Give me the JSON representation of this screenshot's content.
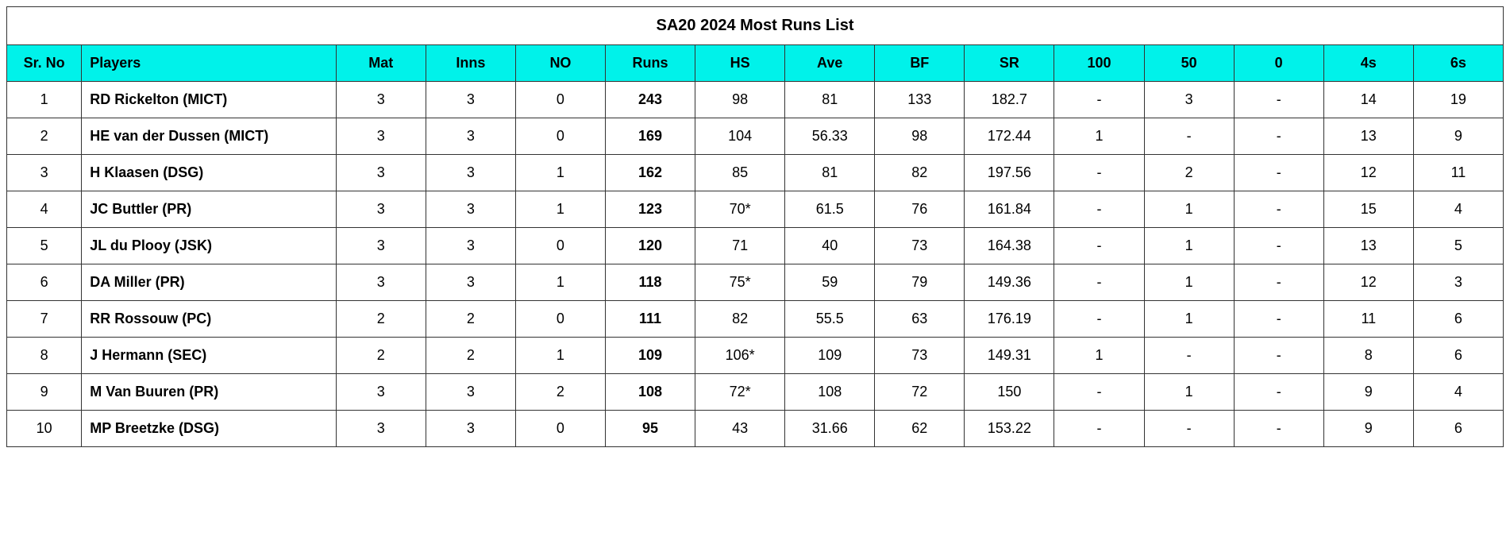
{
  "table": {
    "title": "SA20 2024 Most Runs List",
    "header_bg": "#00f2ea",
    "border_color": "#333333",
    "columns": [
      {
        "key": "sr",
        "label": "Sr. No",
        "class": "col-sr"
      },
      {
        "key": "player",
        "label": "Players",
        "class": "col-player"
      },
      {
        "key": "mat",
        "label": "Mat",
        "class": "col-stat"
      },
      {
        "key": "inns",
        "label": "Inns",
        "class": "col-stat"
      },
      {
        "key": "no",
        "label": "NO",
        "class": "col-stat"
      },
      {
        "key": "runs",
        "label": "Runs",
        "class": "col-stat"
      },
      {
        "key": "hs",
        "label": "HS",
        "class": "col-stat"
      },
      {
        "key": "ave",
        "label": "Ave",
        "class": "col-stat"
      },
      {
        "key": "bf",
        "label": "BF",
        "class": "col-stat"
      },
      {
        "key": "sr_rate",
        "label": "SR",
        "class": "col-stat"
      },
      {
        "key": "h100",
        "label": "100",
        "class": "col-stat"
      },
      {
        "key": "h50",
        "label": "50",
        "class": "col-stat"
      },
      {
        "key": "ducks",
        "label": "0",
        "class": "col-stat"
      },
      {
        "key": "fours",
        "label": "4s",
        "class": "col-stat"
      },
      {
        "key": "sixes",
        "label": "6s",
        "class": "col-stat"
      }
    ],
    "rows": [
      {
        "sr": "1",
        "player": "RD Rickelton (MICT)",
        "mat": "3",
        "inns": "3",
        "no": "0",
        "runs": "243",
        "hs": "98",
        "ave": "81",
        "bf": "133",
        "sr_rate": "182.7",
        "h100": "-",
        "h50": "3",
        "ducks": "-",
        "fours": "14",
        "sixes": "19"
      },
      {
        "sr": "2",
        "player": "HE van der Dussen (MICT)",
        "mat": "3",
        "inns": "3",
        "no": "0",
        "runs": "169",
        "hs": "104",
        "ave": "56.33",
        "bf": "98",
        "sr_rate": "172.44",
        "h100": "1",
        "h50": "-",
        "ducks": "-",
        "fours": "13",
        "sixes": "9"
      },
      {
        "sr": "3",
        "player": "H Klaasen (DSG)",
        "mat": "3",
        "inns": "3",
        "no": "1",
        "runs": "162",
        "hs": "85",
        "ave": "81",
        "bf": "82",
        "sr_rate": "197.56",
        "h100": "-",
        "h50": "2",
        "ducks": "-",
        "fours": "12",
        "sixes": "11"
      },
      {
        "sr": "4",
        "player": "JC Buttler (PR)",
        "mat": "3",
        "inns": "3",
        "no": "1",
        "runs": "123",
        "hs": "70*",
        "ave": "61.5",
        "bf": "76",
        "sr_rate": "161.84",
        "h100": "-",
        "h50": "1",
        "ducks": "-",
        "fours": "15",
        "sixes": "4"
      },
      {
        "sr": "5",
        "player": "JL du Plooy (JSK)",
        "mat": "3",
        "inns": "3",
        "no": "0",
        "runs": "120",
        "hs": "71",
        "ave": "40",
        "bf": "73",
        "sr_rate": "164.38",
        "h100": "-",
        "h50": "1",
        "ducks": "-",
        "fours": "13",
        "sixes": "5"
      },
      {
        "sr": "6",
        "player": "DA Miller (PR)",
        "mat": "3",
        "inns": "3",
        "no": "1",
        "runs": "118",
        "hs": "75*",
        "ave": "59",
        "bf": "79",
        "sr_rate": "149.36",
        "h100": "-",
        "h50": "1",
        "ducks": "-",
        "fours": "12",
        "sixes": "3"
      },
      {
        "sr": "7",
        "player": "RR Rossouw (PC)",
        "mat": "2",
        "inns": "2",
        "no": "0",
        "runs": "111",
        "hs": "82",
        "ave": "55.5",
        "bf": "63",
        "sr_rate": "176.19",
        "h100": "-",
        "h50": "1",
        "ducks": "-",
        "fours": "11",
        "sixes": "6"
      },
      {
        "sr": "8",
        "player": "J Hermann (SEC)",
        "mat": "2",
        "inns": "2",
        "no": "1",
        "runs": "109",
        "hs": "106*",
        "ave": "109",
        "bf": "73",
        "sr_rate": "149.31",
        "h100": "1",
        "h50": "-",
        "ducks": "-",
        "fours": "8",
        "sixes": "6"
      },
      {
        "sr": "9",
        "player": "M Van Buuren (PR)",
        "mat": "3",
        "inns": "3",
        "no": "2",
        "runs": "108",
        "hs": "72*",
        "ave": "108",
        "bf": "72",
        "sr_rate": "150",
        "h100": "-",
        "h50": "1",
        "ducks": "-",
        "fours": "9",
        "sixes": "4"
      },
      {
        "sr": "10",
        "player": "MP Breetzke (DSG)",
        "mat": "3",
        "inns": "3",
        "no": "0",
        "runs": "95",
        "hs": "43",
        "ave": "31.66",
        "bf": "62",
        "sr_rate": "153.22",
        "h100": "-",
        "h50": "-",
        "ducks": "-",
        "fours": "9",
        "sixes": "6"
      }
    ]
  }
}
